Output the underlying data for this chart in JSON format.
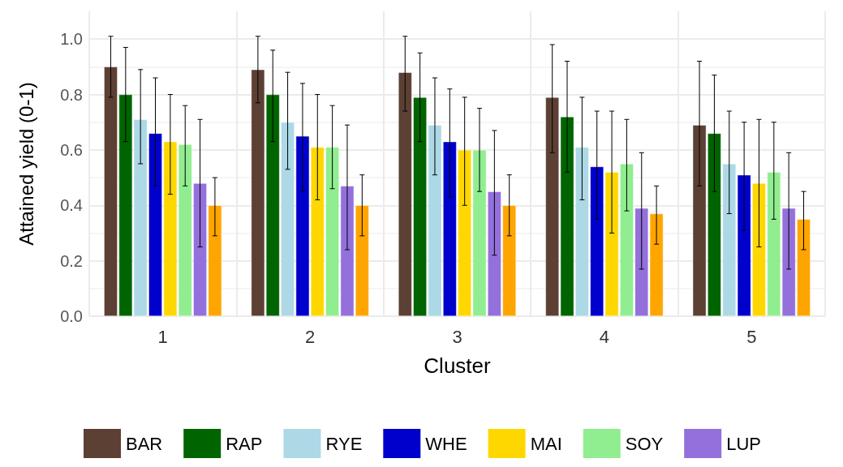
{
  "chart_data": {
    "type": "bar",
    "xlabel": "Cluster",
    "ylabel": "Attained yield (0-1)",
    "categories": [
      "1",
      "2",
      "3",
      "4",
      "5"
    ],
    "ylim": [
      0,
      1.1
    ],
    "yticks": [
      {
        "value": 0,
        "label": "0.0"
      },
      {
        "value": 0.2,
        "label": "0.2"
      },
      {
        "value": 0.4,
        "label": "0.4"
      },
      {
        "value": 0.6,
        "label": "0.6"
      },
      {
        "value": 0.8,
        "label": "0.8"
      },
      {
        "value": 1,
        "label": "1.0"
      }
    ],
    "grid": true,
    "legend": "bottom",
    "series": [
      {
        "name": "BAR",
        "color": "#5c4033",
        "values": [
          0.9,
          0.89,
          0.88,
          0.79,
          0.69
        ],
        "errors": [
          [
            0.79,
            1.01
          ],
          [
            0.77,
            1.01
          ],
          [
            0.74,
            1.01
          ],
          [
            0.59,
            0.98
          ],
          [
            0.47,
            0.92
          ]
        ]
      },
      {
        "name": "RAP",
        "color": "#006400",
        "values": [
          0.8,
          0.8,
          0.79,
          0.72,
          0.66
        ],
        "errors": [
          [
            0.63,
            0.97
          ],
          [
            0.63,
            0.96
          ],
          [
            0.63,
            0.95
          ],
          [
            0.52,
            0.92
          ],
          [
            0.45,
            0.87
          ]
        ]
      },
      {
        "name": "RYE",
        "color": "#add8e6",
        "values": [
          0.71,
          0.7,
          0.69,
          0.61,
          0.55
        ],
        "errors": [
          [
            0.55,
            0.89
          ],
          [
            0.53,
            0.88
          ],
          [
            0.51,
            0.86
          ],
          [
            0.42,
            0.79
          ],
          [
            0.37,
            0.74
          ]
        ]
      },
      {
        "name": "WHE",
        "color": "#0000cd",
        "values": [
          0.66,
          0.65,
          0.63,
          0.54,
          0.51
        ],
        "errors": [
          [
            0.47,
            0.86
          ],
          [
            0.45,
            0.84
          ],
          [
            0.43,
            0.82
          ],
          [
            0.35,
            0.74
          ],
          [
            0.31,
            0.7
          ]
        ]
      },
      {
        "name": "MAI",
        "color": "#ffd700",
        "values": [
          0.63,
          0.61,
          0.6,
          0.52,
          0.48
        ],
        "errors": [
          [
            0.44,
            0.8
          ],
          [
            0.42,
            0.8
          ],
          [
            0.4,
            0.79
          ],
          [
            0.3,
            0.74
          ],
          [
            0.25,
            0.71
          ]
        ]
      },
      {
        "name": "SOY",
        "color": "#90ee90",
        "values": [
          0.62,
          0.61,
          0.6,
          0.55,
          0.52
        ],
        "errors": [
          [
            0.47,
            0.76
          ],
          [
            0.46,
            0.76
          ],
          [
            0.45,
            0.75
          ],
          [
            0.38,
            0.71
          ],
          [
            0.35,
            0.7
          ]
        ]
      },
      {
        "name": "LUP",
        "color": "#9370db",
        "values": [
          0.48,
          0.47,
          0.45,
          0.39,
          0.39
        ],
        "errors": [
          [
            0.25,
            0.71
          ],
          [
            0.24,
            0.69
          ],
          [
            0.22,
            0.67
          ],
          [
            0.17,
            0.59
          ],
          [
            0.17,
            0.59
          ]
        ]
      },
      {
        "color": "#ffa500",
        "values": [
          0.4,
          0.4,
          0.4,
          0.37,
          0.35
        ],
        "errors": [
          [
            0.29,
            0.5
          ],
          [
            0.29,
            0.51
          ],
          [
            0.29,
            0.51
          ],
          [
            0.26,
            0.47
          ],
          [
            0.24,
            0.45
          ]
        ]
      }
    ]
  }
}
